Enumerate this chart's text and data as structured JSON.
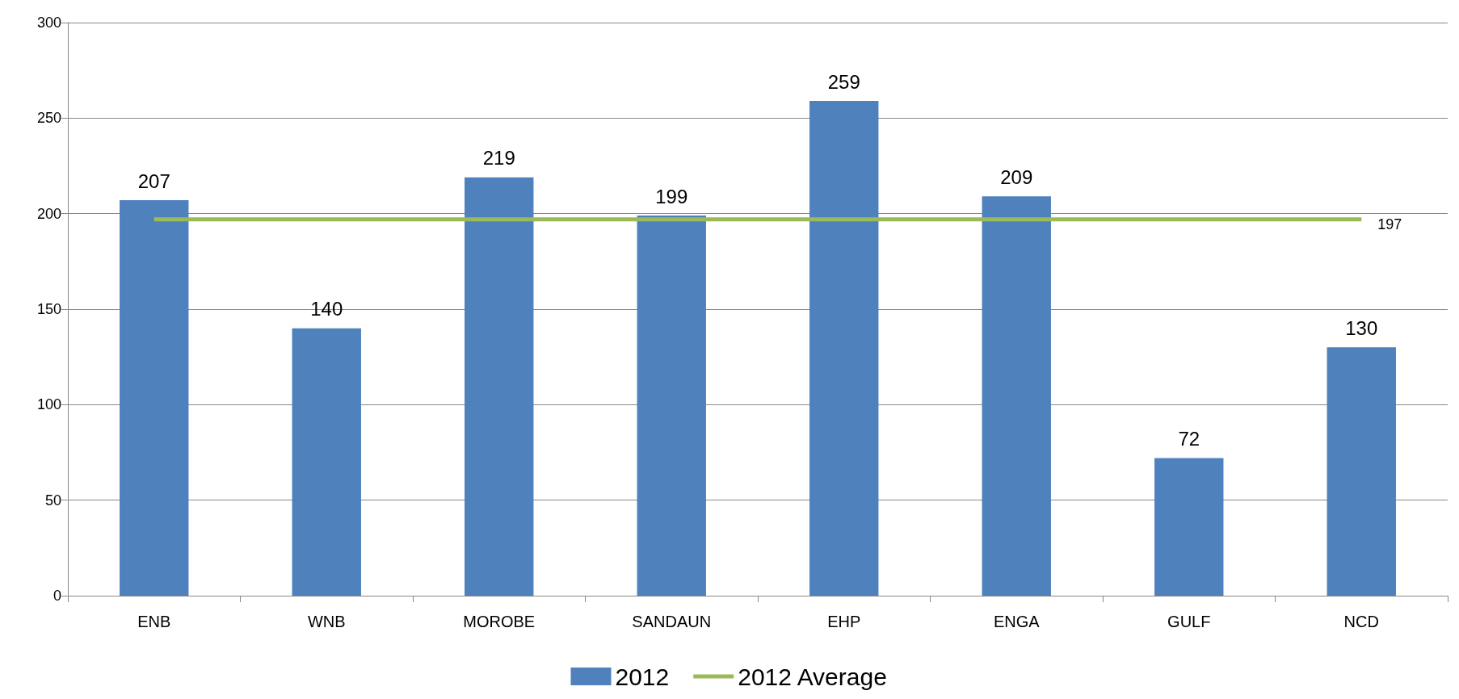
{
  "chart_data": {
    "type": "bar",
    "categories": [
      "ENB",
      "WNB",
      "MOROBE",
      "SANDAUN",
      "EHP",
      "ENGA",
      "GULF",
      "NCD"
    ],
    "series": [
      {
        "name": "2012",
        "color": "#4f81bd",
        "values": [
          207,
          140,
          219,
          199,
          259,
          209,
          72,
          130
        ],
        "value_labels": [
          "207",
          "140",
          "219",
          "199",
          "259",
          "209",
          "72",
          "130"
        ]
      },
      {
        "name": "2012 Average",
        "type": "line",
        "color": "#9bbb59",
        "values": [
          197,
          197,
          197,
          197,
          197,
          197,
          197,
          197
        ],
        "value_labels": [
          null,
          null,
          null,
          null,
          null,
          null,
          null,
          "197"
        ]
      }
    ],
    "ylim": [
      0,
      300
    ],
    "yticks": [
      0,
      50,
      100,
      150,
      200,
      250,
      300
    ],
    "grid": "y",
    "legend": "bottom",
    "marker": "none",
    "line_style": "solid"
  }
}
